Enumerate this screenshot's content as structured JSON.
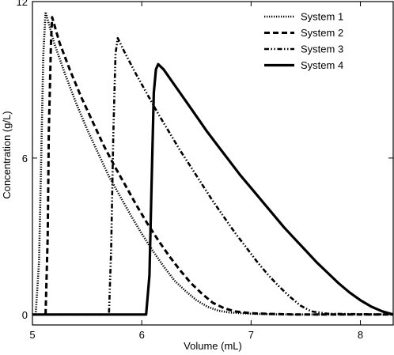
{
  "chart_data": {
    "type": "line",
    "title": "",
    "xlabel": "Volume (mL)",
    "ylabel": "Concentration (g/L)",
    "xlim": [
      5.0,
      8.3
    ],
    "ylim": [
      -0.4,
      12.0
    ],
    "x_ticks": [
      5,
      6,
      7,
      8
    ],
    "x_tick_labels": [
      "5",
      "6",
      "7",
      "8"
    ],
    "y_ticks": [
      0,
      6,
      12
    ],
    "y_tick_labels": [
      "0",
      "6",
      "12"
    ],
    "grid": false,
    "legend_position": "top-right",
    "series": [
      {
        "name": "System 1",
        "style": "dotted",
        "color": "#000000",
        "x": [
          5.03,
          5.06,
          5.08,
          5.1,
          5.12,
          5.2,
          5.3,
          5.4,
          5.5,
          5.6,
          5.7,
          5.8,
          5.9,
          6.0,
          6.1,
          6.2,
          6.3,
          6.4,
          6.5,
          6.6,
          6.7,
          6.8,
          7.0,
          7.2,
          7.4,
          8.3
        ],
        "y": [
          0.0,
          2.0,
          6.0,
          10.0,
          11.6,
          10.4,
          9.2,
          8.1,
          7.1,
          6.2,
          5.3,
          4.55,
          3.8,
          3.1,
          2.45,
          1.85,
          1.3,
          0.9,
          0.55,
          0.3,
          0.15,
          0.08,
          0.03,
          0.01,
          0.0,
          0.0
        ]
      },
      {
        "name": "System 2",
        "style": "dashed",
        "color": "#000000",
        "x": [
          5.12,
          5.14,
          5.15,
          5.17,
          5.18,
          5.25,
          5.35,
          5.45,
          5.55,
          5.65,
          5.75,
          5.85,
          5.95,
          6.05,
          6.15,
          6.25,
          6.35,
          6.45,
          6.55,
          6.65,
          6.75,
          6.85,
          7.0,
          7.2,
          7.4,
          8.3
        ],
        "y": [
          0.0,
          3.0,
          7.0,
          10.5,
          11.4,
          10.4,
          9.3,
          8.3,
          7.4,
          6.5,
          5.7,
          4.95,
          4.2,
          3.5,
          2.85,
          2.25,
          1.7,
          1.2,
          0.8,
          0.45,
          0.25,
          0.12,
          0.05,
          0.02,
          0.0,
          0.0
        ]
      },
      {
        "name": "System 3",
        "style": "dash-dot-dot",
        "color": "#000000",
        "x": [
          5.0,
          5.7,
          5.72,
          5.74,
          5.76,
          5.78,
          5.85,
          5.95,
          6.05,
          6.15,
          6.25,
          6.35,
          6.45,
          6.55,
          6.65,
          6.75,
          6.85,
          6.95,
          7.05,
          7.15,
          7.25,
          7.35,
          7.45,
          7.55,
          7.7,
          8.3
        ],
        "y": [
          0.0,
          0.0,
          2.5,
          7.0,
          10.0,
          10.6,
          10.0,
          9.2,
          8.45,
          7.7,
          7.0,
          6.3,
          5.65,
          5.0,
          4.35,
          3.75,
          3.15,
          2.6,
          2.05,
          1.55,
          1.1,
          0.7,
          0.35,
          0.12,
          0.03,
          0.0
        ]
      },
      {
        "name": "System 4",
        "style": "solid",
        "color": "#000000",
        "x": [
          5.0,
          6.04,
          6.07,
          6.09,
          6.11,
          6.13,
          6.15,
          6.2,
          6.3,
          6.4,
          6.5,
          6.6,
          6.7,
          6.8,
          6.9,
          7.0,
          7.1,
          7.2,
          7.3,
          7.4,
          7.5,
          7.6,
          7.7,
          7.8,
          7.9,
          8.0,
          8.1,
          8.2,
          8.3
        ],
        "y": [
          0.0,
          0.0,
          1.5,
          5.0,
          8.5,
          9.4,
          9.6,
          9.4,
          8.8,
          8.2,
          7.6,
          7.0,
          6.45,
          5.9,
          5.35,
          4.85,
          4.35,
          3.85,
          3.35,
          2.9,
          2.45,
          2.0,
          1.6,
          1.2,
          0.85,
          0.55,
          0.3,
          0.12,
          0.0
        ]
      }
    ]
  }
}
